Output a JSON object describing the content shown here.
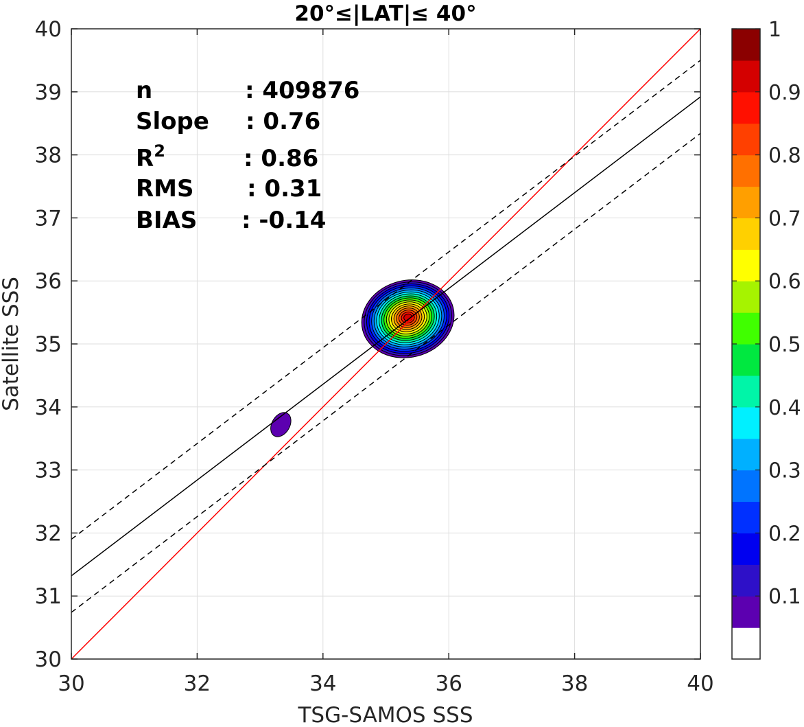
{
  "chart_data": {
    "type": "contour",
    "title": "20°≤|LAT|≤ 40°",
    "xlabel": "TSG-SAMOS SSS",
    "ylabel": "Satellite SSS",
    "xlim": [
      30,
      40
    ],
    "ylim": [
      30,
      40
    ],
    "xticks": [
      "30",
      "32",
      "34",
      "36",
      "38",
      "40"
    ],
    "yticks": [
      "30",
      "31",
      "32",
      "33",
      "34",
      "35",
      "36",
      "37",
      "38",
      "39",
      "40"
    ],
    "grid": true,
    "stats": [
      {
        "label": "n",
        "value": ": 409876"
      },
      {
        "label": "Slope",
        "value": ": 0.76"
      },
      {
        "label": "R",
        "sup": "2",
        "value": ": 0.86"
      },
      {
        "label": "RMS",
        "value": ": 0.31"
      },
      {
        "label": "BIAS",
        "value": ": -0.14"
      }
    ],
    "lines": [
      {
        "name": "1:1",
        "color": "#ff0000",
        "style": "solid",
        "x": [
          30,
          40
        ],
        "y": [
          30,
          40
        ]
      },
      {
        "name": "fit",
        "color": "#000000",
        "style": "solid",
        "x": [
          30,
          40
        ],
        "y": [
          31.32,
          38.92
        ]
      },
      {
        "name": "fit_upper",
        "color": "#000000",
        "style": "dashed",
        "x": [
          30,
          40
        ],
        "y": [
          31.9,
          39.5
        ]
      },
      {
        "name": "fit_lower",
        "color": "#000000",
        "style": "dashed",
        "x": [
          30,
          40
        ],
        "y": [
          30.74,
          38.34
        ]
      }
    ],
    "density_peak": {
      "x": 35.35,
      "y": 35.42
    },
    "secondary_blob": {
      "x": 33.33,
      "y": 33.72,
      "level": 0.1
    },
    "colorbar": {
      "min": 0,
      "max": 1,
      "ticks": [
        "0.1",
        "0.2",
        "0.3",
        "0.4",
        "0.5",
        "0.6",
        "0.7",
        "0.8",
        "0.9",
        "1"
      ],
      "tick_values": [
        0.1,
        0.2,
        0.3,
        0.4,
        0.5,
        0.6,
        0.7,
        0.8,
        0.9,
        1.0
      ],
      "colors": [
        "#ffffff",
        "#5c00b0",
        "#2e10c8",
        "#0000f0",
        "#0030ff",
        "#0074ff",
        "#00b0ff",
        "#00f0ff",
        "#00f5a8",
        "#00e840",
        "#40ff00",
        "#a6f300",
        "#ffff00",
        "#ffd000",
        "#ff9f00",
        "#ff7000",
        "#ff4000",
        "#ff1000",
        "#d40000",
        "#8b0000"
      ]
    }
  }
}
